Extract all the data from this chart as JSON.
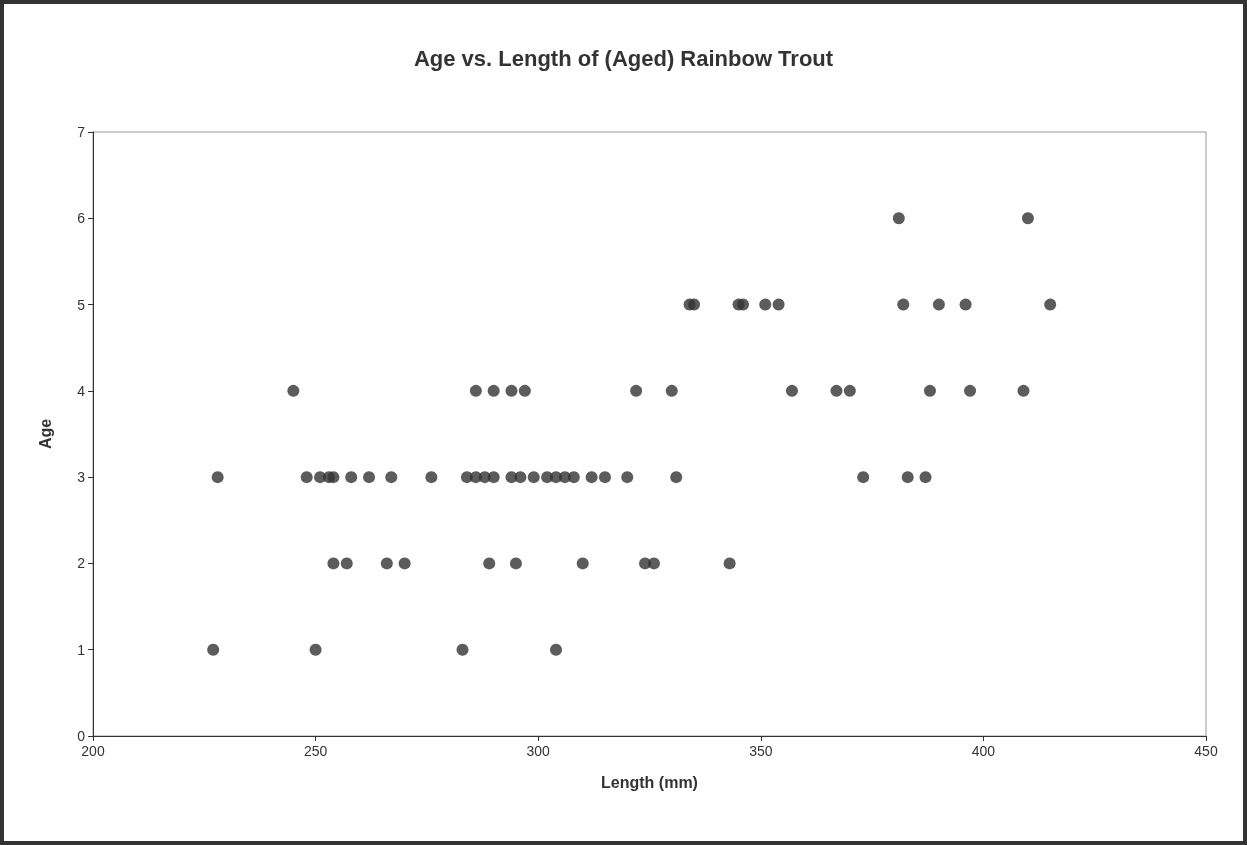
{
  "chart_data": {
    "type": "scatter",
    "title": "Age vs. Length of (Aged) Rainbow Trout",
    "xlabel": "Length (mm)",
    "ylabel": "Age",
    "x": [
      227,
      250,
      283,
      304,
      254,
      257,
      266,
      270,
      289,
      295,
      310,
      324,
      326,
      343,
      228,
      248,
      251,
      253,
      254,
      258,
      262,
      267,
      276,
      284,
      286,
      288,
      290,
      294,
      296,
      299,
      302,
      304,
      306,
      308,
      312,
      315,
      320,
      331,
      373,
      383,
      387,
      245,
      286,
      290,
      294,
      297,
      322,
      330,
      357,
      367,
      370,
      388,
      397,
      409,
      334,
      335,
      345,
      346,
      351,
      354,
      382,
      390,
      396,
      415,
      381,
      410
    ],
    "values": [
      1,
      1,
      1,
      1,
      2,
      2,
      2,
      2,
      2,
      2,
      2,
      2,
      2,
      2,
      3,
      3,
      3,
      3,
      3,
      3,
      3,
      3,
      3,
      3,
      3,
      3,
      3,
      3,
      3,
      3,
      3,
      3,
      3,
      3,
      3,
      3,
      3,
      3,
      3,
      3,
      3,
      4,
      4,
      4,
      4,
      4,
      4,
      4,
      4,
      4,
      4,
      4,
      4,
      4,
      5,
      5,
      5,
      5,
      5,
      5,
      5,
      5,
      5,
      5,
      6,
      6
    ],
    "color": "#333333",
    "marker": "circle",
    "xlim": [
      200,
      450
    ],
    "xticks": [
      200,
      250,
      300,
      350,
      400,
      450
    ],
    "ylim": [
      0,
      7
    ],
    "yticks": [
      0,
      1,
      2,
      3,
      4,
      5,
      6,
      7
    ]
  }
}
